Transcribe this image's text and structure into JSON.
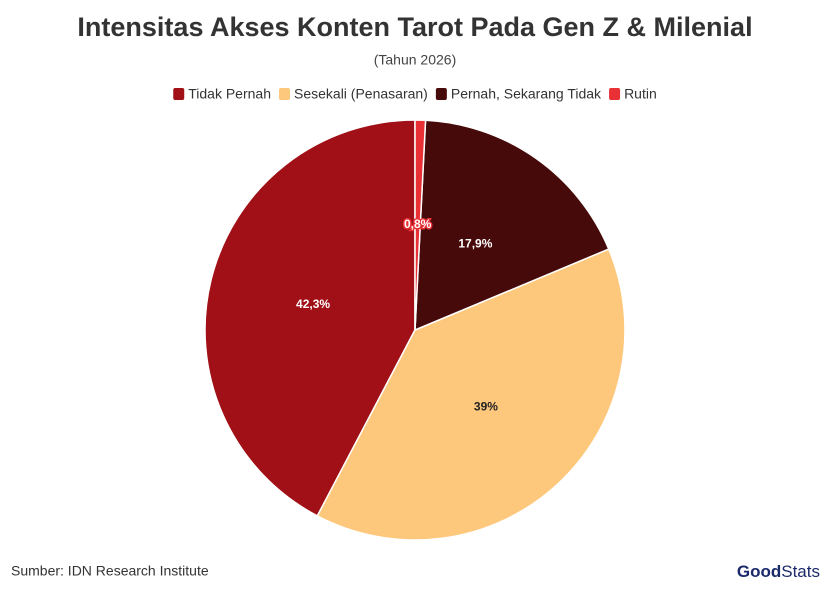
{
  "chart_data": {
    "type": "pie",
    "title": "Intensitas Akses Konten Tarot Pada Gen Z & Milenial",
    "subtitle": "(Tahun 2026)",
    "categories": [
      "Tidak Pernah",
      "Sesekali (Penasaran)",
      "Pernah, Sekarang Tidak",
      "Rutin"
    ],
    "values": [
      42.3,
      39,
      17.9,
      0.8
    ],
    "value_labels": [
      "42,3%",
      "39%",
      "17,9%",
      "0,8%"
    ],
    "colors": [
      "#a01016",
      "#fec87c",
      "#470a0a",
      "#e83035"
    ],
    "legend": "top",
    "source": "Sumber: IDN Research Institute",
    "logo": [
      "Good",
      "Stats"
    ]
  }
}
